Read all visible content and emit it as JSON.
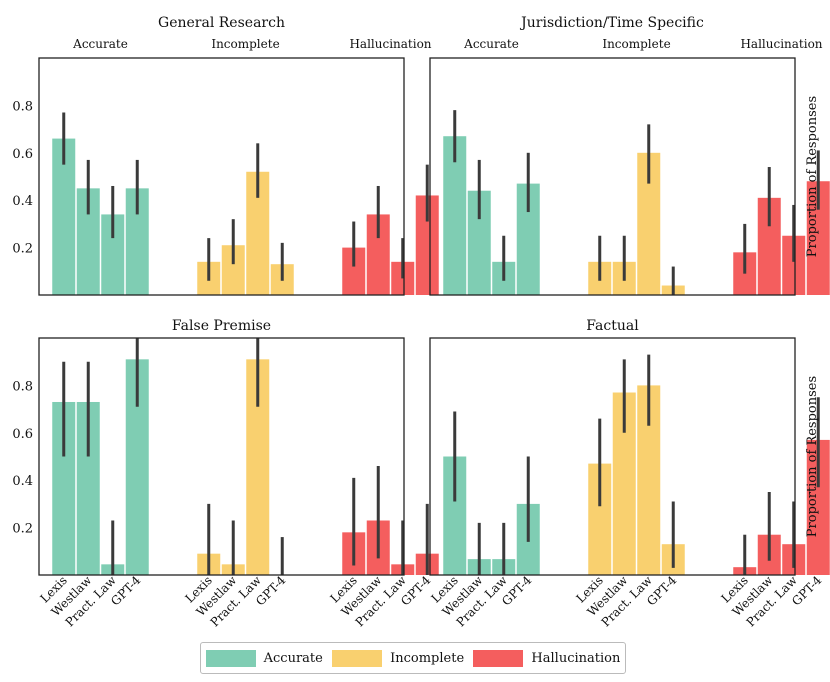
{
  "chart_data": {
    "type": "bar",
    "ylabel": "Proportion of Responses",
    "ylim": [
      0,
      1.0
    ],
    "yticks": [
      0.2,
      0.4,
      0.6,
      0.8
    ],
    "groups": [
      "Accurate",
      "Incomplete",
      "Hallucination"
    ],
    "categories": [
      "Lexis",
      "Westlaw",
      "Pract. Law",
      "GPT-4"
    ],
    "colors": {
      "Accurate": "#7fcdb3",
      "Incomplete": "#f9d06f",
      "Hallucination": "#f45e5e"
    },
    "legend": [
      "Accurate",
      "Incomplete",
      "Hallucination"
    ],
    "panels": [
      {
        "title": "General Research",
        "series": [
          {
            "name": "Accurate",
            "values": [
              0.66,
              0.45,
              0.34,
              0.45
            ],
            "ci_low": [
              0.55,
              0.34,
              0.24,
              0.34
            ],
            "ci_high": [
              0.77,
              0.57,
              0.46,
              0.57
            ]
          },
          {
            "name": "Incomplete",
            "values": [
              0.14,
              0.21,
              0.52,
              0.13
            ],
            "ci_low": [
              0.06,
              0.13,
              0.41,
              0.06
            ],
            "ci_high": [
              0.24,
              0.32,
              0.64,
              0.22
            ]
          },
          {
            "name": "Hallucination",
            "values": [
              0.2,
              0.34,
              0.14,
              0.42
            ],
            "ci_low": [
              0.12,
              0.24,
              0.07,
              0.31
            ],
            "ci_high": [
              0.31,
              0.46,
              0.24,
              0.55
            ]
          }
        ]
      },
      {
        "title": "Jurisdiction/Time Specific",
        "series": [
          {
            "name": "Accurate",
            "values": [
              0.67,
              0.44,
              0.14,
              0.47
            ],
            "ci_low": [
              0.56,
              0.32,
              0.06,
              0.35
            ],
            "ci_high": [
              0.78,
              0.57,
              0.25,
              0.6
            ]
          },
          {
            "name": "Incomplete",
            "values": [
              0.14,
              0.14,
              0.6,
              0.04
            ],
            "ci_low": [
              0.06,
              0.06,
              0.47,
              0.0
            ],
            "ci_high": [
              0.25,
              0.25,
              0.72,
              0.12
            ]
          },
          {
            "name": "Hallucination",
            "values": [
              0.18,
              0.41,
              0.25,
              0.48
            ],
            "ci_low": [
              0.09,
              0.29,
              0.14,
              0.36
            ],
            "ci_high": [
              0.3,
              0.54,
              0.38,
              0.61
            ]
          }
        ]
      },
      {
        "title": "False Premise",
        "series": [
          {
            "name": "Accurate",
            "values": [
              0.73,
              0.73,
              0.045,
              0.91
            ],
            "ci_low": [
              0.5,
              0.5,
              0.0,
              0.71
            ],
            "ci_high": [
              0.9,
              0.9,
              0.23,
              1.0
            ]
          },
          {
            "name": "Incomplete",
            "values": [
              0.09,
              0.045,
              0.91,
              0.0
            ],
            "ci_low": [
              0.0,
              0.0,
              0.71,
              0.0
            ],
            "ci_high": [
              0.3,
              0.23,
              1.0,
              0.16
            ]
          },
          {
            "name": "Hallucination",
            "values": [
              0.18,
              0.23,
              0.045,
              0.09
            ],
            "ci_low": [
              0.04,
              0.07,
              0.0,
              0.0
            ],
            "ci_high": [
              0.41,
              0.46,
              0.23,
              0.3
            ]
          }
        ]
      },
      {
        "title": "Factual",
        "series": [
          {
            "name": "Accurate",
            "values": [
              0.5,
              0.067,
              0.067,
              0.3
            ],
            "ci_low": [
              0.31,
              0.0,
              0.0,
              0.14
            ],
            "ci_high": [
              0.69,
              0.22,
              0.22,
              0.5
            ]
          },
          {
            "name": "Incomplete",
            "values": [
              0.47,
              0.77,
              0.8,
              0.13
            ],
            "ci_low": [
              0.29,
              0.6,
              0.63,
              0.03
            ],
            "ci_high": [
              0.66,
              0.91,
              0.93,
              0.31
            ]
          },
          {
            "name": "Hallucination",
            "values": [
              0.033,
              0.17,
              0.13,
              0.57
            ],
            "ci_low": [
              0.0,
              0.06,
              0.03,
              0.37
            ],
            "ci_high": [
              0.17,
              0.35,
              0.31,
              0.75
            ]
          }
        ]
      }
    ]
  }
}
